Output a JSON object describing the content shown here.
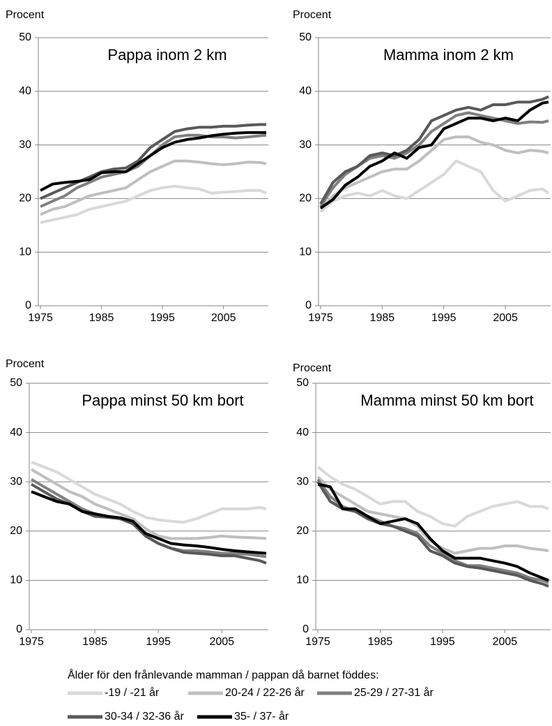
{
  "chart_data": [
    {
      "type": "line",
      "title": "Pappa inom 2 km",
      "ylabel": "Procent",
      "x": [
        1975,
        1977,
        1979,
        1981,
        1983,
        1985,
        1987,
        1989,
        1991,
        1993,
        1995,
        1997,
        1999,
        2001,
        2003,
        2005,
        2007,
        2009,
        2011,
        2012
      ],
      "xlim": [
        1975,
        2012
      ],
      "xticks": [
        1975,
        1985,
        1995,
        2005
      ],
      "ylim": [
        0,
        50
      ],
      "yticks": [
        0,
        10,
        20,
        30,
        40,
        50
      ],
      "grid": true,
      "series": [
        {
          "values": [
            15.5,
            16,
            16.5,
            17,
            18,
            18.5,
            19,
            19.5,
            20.5,
            21.5,
            22,
            22.3,
            22,
            21.8,
            21,
            21.2,
            21.3,
            21.5,
            21.5,
            21
          ]
        },
        {
          "values": [
            17,
            18,
            18.5,
            19.5,
            20.5,
            21,
            21.5,
            22,
            23.5,
            25,
            26,
            27,
            27,
            26.8,
            26.5,
            26.3,
            26.5,
            26.8,
            26.7,
            26.5
          ]
        },
        {
          "values": [
            18.5,
            19.5,
            20.5,
            22,
            23,
            24,
            24.5,
            25,
            26,
            28,
            30,
            31.5,
            31.8,
            31.8,
            31.5,
            31.5,
            31.3,
            31.5,
            31.7,
            31.8
          ]
        },
        {
          "values": [
            20,
            21,
            22,
            23,
            24,
            25,
            25.5,
            25.7,
            27,
            29.5,
            31,
            32.5,
            33,
            33.3,
            33.3,
            33.5,
            33.5,
            33.7,
            33.8,
            33.8
          ]
        },
        {
          "values": [
            21.5,
            22.7,
            23,
            23.2,
            23.5,
            24.8,
            25,
            25,
            26.5,
            28,
            29.5,
            30.5,
            31,
            31.3,
            31.7,
            32,
            32.2,
            32.3,
            32.3,
            32.3
          ]
        }
      ]
    },
    {
      "type": "line",
      "title": "Mamma inom 2 km",
      "ylabel": "Procent",
      "x": [
        1975,
        1977,
        1979,
        1981,
        1983,
        1985,
        1987,
        1989,
        1991,
        1993,
        1995,
        1997,
        1999,
        2001,
        2003,
        2005,
        2007,
        2009,
        2011,
        2012
      ],
      "xlim": [
        1975,
        2012
      ],
      "xticks": [
        1975,
        1985,
        1995,
        2005
      ],
      "ylim": [
        0,
        50
      ],
      "yticks": [
        0,
        10,
        20,
        30,
        40,
        50
      ],
      "grid": true,
      "series": [
        {
          "values": [
            17.5,
            19.5,
            20.5,
            21,
            20.5,
            21.5,
            20.5,
            20,
            21.5,
            23,
            24.5,
            27,
            26,
            25,
            21.5,
            19.5,
            20.5,
            21.5,
            21.8,
            21
          ]
        },
        {
          "values": [
            18,
            20.5,
            22,
            23,
            24,
            25,
            25.5,
            25.5,
            27,
            29,
            31,
            31.5,
            31.5,
            30.5,
            30,
            29,
            28.5,
            29,
            28.8,
            28.5
          ]
        },
        {
          "values": [
            18.5,
            22,
            24.5,
            26,
            27.5,
            28,
            27.5,
            28.5,
            30,
            32.5,
            34,
            35.5,
            36,
            35.5,
            35,
            34.5,
            34,
            34.3,
            34.2,
            34.5
          ]
        },
        {
          "values": [
            19,
            23,
            25,
            26,
            28,
            28.5,
            28,
            29,
            31,
            34.5,
            35.5,
            36.5,
            37,
            36.5,
            37.5,
            37.5,
            38,
            38,
            38.5,
            39
          ]
        },
        {
          "values": [
            18.2,
            19.8,
            22.5,
            24,
            26,
            27,
            28.5,
            27.5,
            29.5,
            30,
            33,
            34,
            35,
            35,
            34.5,
            35,
            34.5,
            36.5,
            37.8,
            38
          ]
        }
      ]
    },
    {
      "type": "line",
      "title": "Pappa minst 50 km bort",
      "ylabel": "Procent",
      "x": [
        1975,
        1977,
        1979,
        1981,
        1983,
        1985,
        1987,
        1989,
        1991,
        1993,
        1995,
        1997,
        1999,
        2001,
        2003,
        2005,
        2007,
        2009,
        2011,
        2012
      ],
      "xlim": [
        1975,
        2012
      ],
      "xticks": [
        1975,
        1985,
        1995,
        2005
      ],
      "ylim": [
        0,
        50
      ],
      "yticks": [
        0,
        10,
        20,
        30,
        40,
        50
      ],
      "grid": true,
      "series": [
        {
          "values": [
            34,
            33,
            32,
            30.5,
            29,
            27.5,
            26.5,
            25.5,
            24,
            22.8,
            22.3,
            22,
            21.8,
            22.5,
            23.5,
            24.5,
            24.5,
            24.5,
            24.8,
            24.5
          ]
        },
        {
          "values": [
            32.5,
            31,
            29.5,
            28,
            27,
            25.5,
            24.5,
            23.5,
            22.5,
            20.5,
            19,
            18.5,
            18.5,
            18.5,
            18.7,
            19,
            18.8,
            18.7,
            18.6,
            18.5
          ]
        },
        {
          "values": [
            30.5,
            29,
            27.5,
            26,
            24.5,
            23.5,
            23,
            22.5,
            21.5,
            19,
            17.5,
            16.5,
            16,
            16,
            15.8,
            15.5,
            15.5,
            15.3,
            15,
            14.8
          ]
        },
        {
          "values": [
            29.5,
            28,
            26.5,
            25.5,
            24,
            23,
            22.8,
            22.5,
            21.5,
            19,
            17.5,
            16.5,
            15.7,
            15.5,
            15.3,
            15,
            15,
            14.5,
            14,
            13.5
          ]
        },
        {
          "values": [
            28,
            27,
            26,
            25.5,
            24,
            23.5,
            23,
            22.7,
            22,
            19.5,
            18.5,
            17.5,
            17.2,
            17,
            16.7,
            16.3,
            16,
            15.8,
            15.6,
            15.5
          ]
        }
      ]
    },
    {
      "type": "line",
      "title": "Mamma minst 50 km bort",
      "ylabel": "Procent",
      "x": [
        1975,
        1977,
        1979,
        1981,
        1983,
        1985,
        1987,
        1989,
        1991,
        1993,
        1995,
        1997,
        1999,
        2001,
        2003,
        2005,
        2007,
        2009,
        2011,
        2012
      ],
      "xlim": [
        1975,
        2012
      ],
      "xticks": [
        1975,
        1985,
        1995,
        2005
      ],
      "ylim": [
        0,
        50
      ],
      "yticks": [
        0,
        10,
        20,
        30,
        40,
        50
      ],
      "grid": true,
      "series": [
        {
          "values": [
            33,
            31,
            29.5,
            28.5,
            27,
            25.5,
            26,
            26,
            24,
            23,
            21.5,
            21,
            23,
            24,
            25,
            25.5,
            26,
            25,
            25,
            24.5
          ]
        },
        {
          "values": [
            31,
            28.5,
            27,
            25.5,
            24,
            23.5,
            23,
            22.5,
            21,
            18,
            16.5,
            15.5,
            16,
            16.5,
            16.5,
            17,
            17,
            16.5,
            16.2,
            16
          ]
        },
        {
          "values": [
            30.5,
            27,
            25,
            24,
            23,
            22,
            21,
            20.5,
            19.5,
            17,
            15.5,
            14,
            13,
            13,
            12.5,
            12,
            11.5,
            10.5,
            10,
            9.5
          ]
        },
        {
          "values": [
            30,
            26,
            24.5,
            24,
            22.5,
            21.5,
            21,
            20,
            19,
            16,
            15,
            13.5,
            12.8,
            12.5,
            12,
            11.5,
            11,
            10,
            9.3,
            8.8
          ]
        },
        {
          "values": [
            29.5,
            29,
            24.5,
            24.5,
            23,
            21.5,
            22,
            22.5,
            21.5,
            18.5,
            16,
            14.5,
            14.5,
            14.5,
            14,
            13.5,
            12.8,
            11.5,
            10.5,
            10
          ]
        }
      ]
    }
  ],
  "legend": {
    "title": "Ålder för den frånlevande mamman / pappan då barnet föddes:",
    "entries": [
      {
        "name": "-19 / -21 år",
        "color": "#d9d9d9"
      },
      {
        "name": "20-24 / 22-26 år",
        "color": "#bfbfbf"
      },
      {
        "name": "25-29 / 27-31 år",
        "color": "#808080"
      },
      {
        "name": "30-34 / 32-36 år",
        "color": "#595959"
      },
      {
        "name": "35- / 37- år",
        "color": "#000000"
      }
    ]
  }
}
